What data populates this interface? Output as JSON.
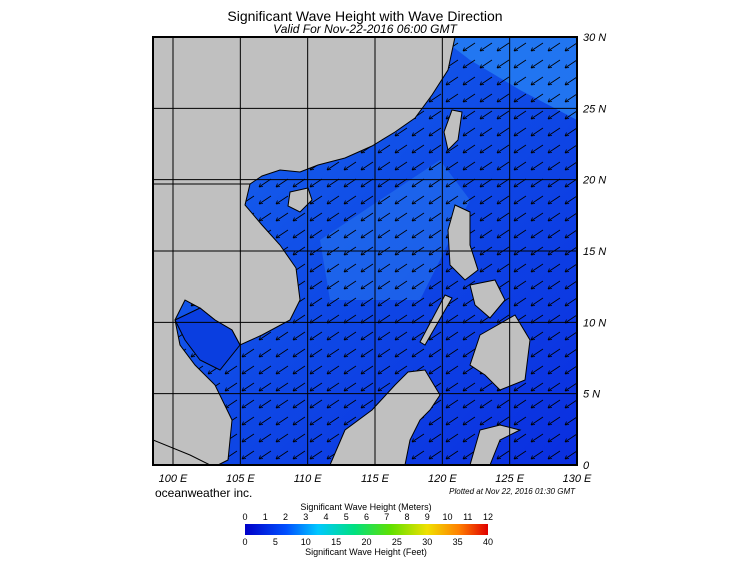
{
  "header": {
    "title": "Significant Wave Height with Wave Direction",
    "subtitle": "Valid For Nov-22-2016 06:00 GMT"
  },
  "map": {
    "lat_labels": [
      "30 N",
      "25 N",
      "20 N",
      "15 N",
      "10 N",
      "5 N",
      "0"
    ],
    "lon_labels": [
      "100 E",
      "105 E",
      "110 E",
      "115 E",
      "120 E",
      "125 E",
      "130 E"
    ]
  },
  "footer": {
    "credit": "oceanweather inc.",
    "plotted": "Plotted at Nov 22, 2016 01:30 GMT"
  },
  "legend": {
    "meters_title": "Significant Wave Height (Meters)",
    "meters_ticks": [
      0,
      1,
      2,
      3,
      4,
      5,
      6,
      7,
      8,
      9,
      10,
      11,
      12
    ],
    "feet_ticks": [
      0,
      5,
      10,
      15,
      20,
      25,
      30,
      35,
      40
    ],
    "feet_title": "Significant Wave Height (Feet)"
  }
}
